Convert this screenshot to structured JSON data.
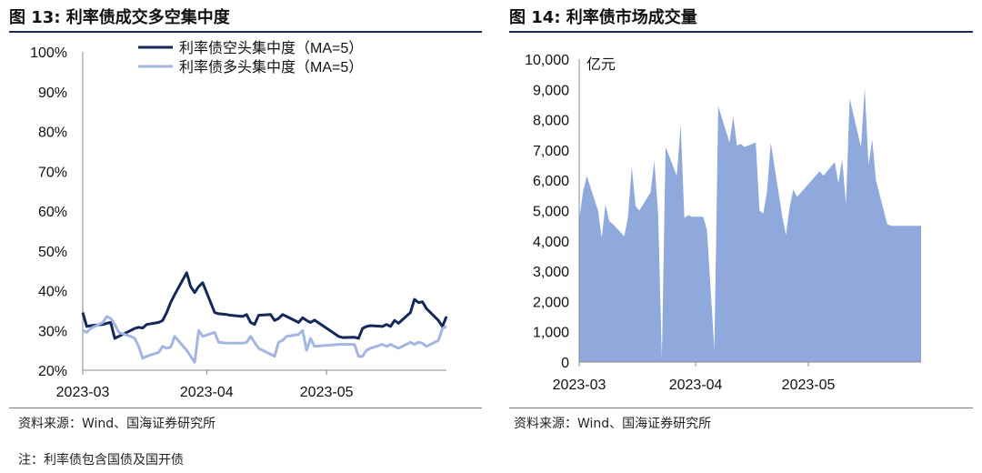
{
  "left_panel": {
    "header": "图 13: 利率债成交多空集中度",
    "source": "资料来源：Wind、国海证券研究所"
  },
  "right_panel": {
    "header": "图 14: 利率债市场成交量",
    "source": "资料来源：Wind、国海证券研究所"
  },
  "note": "注：利率债包含国债及国开债",
  "colors": {
    "short_series": "#14285a",
    "long_series": "#a3b6e2",
    "volume_fill": "#8fa9dc",
    "header_rule": "#1b2d4f"
  },
  "chart_data": [
    {
      "type": "line",
      "title": "",
      "x_ticks": [
        "2023-03",
        "2023-04",
        "2023-05"
      ],
      "y_ticks": [
        "20%",
        "30%",
        "40%",
        "50%",
        "60%",
        "70%",
        "80%",
        "90%",
        "100%"
      ],
      "ylim": [
        20,
        100
      ],
      "legend_position": "top",
      "x": [
        "2023-03-01",
        "2023-03-02",
        "2023-03-03",
        "2023-03-06",
        "2023-03-07",
        "2023-03-08",
        "2023-03-09",
        "2023-03-10",
        "2023-03-13",
        "2023-03-14",
        "2023-03-15",
        "2023-03-16",
        "2023-03-17",
        "2023-03-20",
        "2023-03-21",
        "2023-03-22",
        "2023-03-23",
        "2023-03-24",
        "2023-03-27",
        "2023-03-28",
        "2023-03-29",
        "2023-03-30",
        "2023-03-31",
        "2023-04-03",
        "2023-04-04",
        "2023-04-06",
        "2023-04-07",
        "2023-04-10",
        "2023-04-11",
        "2023-04-12",
        "2023-04-13",
        "2023-04-14",
        "2023-04-17",
        "2023-04-18",
        "2023-04-19",
        "2023-04-20",
        "2023-04-21",
        "2023-04-24",
        "2023-04-25",
        "2023-04-26",
        "2023-04-27",
        "2023-04-28",
        "2023-05-04",
        "2023-05-05",
        "2023-05-08",
        "2023-05-09",
        "2023-05-10",
        "2023-05-11",
        "2023-05-12",
        "2023-05-15",
        "2023-05-16",
        "2023-05-17",
        "2023-05-18",
        "2023-05-19",
        "2023-05-22",
        "2023-05-23",
        "2023-05-24",
        "2023-05-25",
        "2023-05-26",
        "2023-05-29",
        "2023-05-30",
        "2023-05-31"
      ],
      "series": [
        {
          "name": "利率债空头集中度（MA=5）",
          "values": [
            34.5,
            31.0,
            31.2,
            31.5,
            31.8,
            32.0,
            28.0,
            28.5,
            30.0,
            30.5,
            30.8,
            30.6,
            31.5,
            32.0,
            32.5,
            34.5,
            37.0,
            39.0,
            44.5,
            41.0,
            39.5,
            41.0,
            42.0,
            34.5,
            34.2,
            34.0,
            33.8,
            33.5,
            34.0,
            32.0,
            31.5,
            33.8,
            34.0,
            32.5,
            33.0,
            34.0,
            33.5,
            32.0,
            33.2,
            32.5,
            32.0,
            32.6,
            28.5,
            28.2,
            28.3,
            28.0,
            30.5,
            31.0,
            31.2,
            31.0,
            31.5,
            31.0,
            32.5,
            31.8,
            34.5,
            37.8,
            37.0,
            37.2,
            35.5,
            32.5,
            31.0,
            33.5
          ]
        },
        {
          "name": "利率债多头集中度（MA=5）",
          "values": [
            30.0,
            29.5,
            30.5,
            32.0,
            33.5,
            33.0,
            31.5,
            29.5,
            28.5,
            28.0,
            26.0,
            23.0,
            23.5,
            24.5,
            26.0,
            25.5,
            25.8,
            28.5,
            25.0,
            23.5,
            22.0,
            30.0,
            28.5,
            29.5,
            27.0,
            26.8,
            26.8,
            26.8,
            27.0,
            28.5,
            27.0,
            25.5,
            24.0,
            23.5,
            27.0,
            27.5,
            28.5,
            29.0,
            30.0,
            25.0,
            28.0,
            26.0,
            26.5,
            26.5,
            26.5,
            23.5,
            23.5,
            25.0,
            25.5,
            26.5,
            26.0,
            26.5,
            26.0,
            25.5,
            27.0,
            26.5,
            27.0,
            26.8,
            26.0,
            27.5,
            30.5,
            31.0
          ]
        }
      ]
    },
    {
      "type": "area",
      "title": "",
      "ylabel": "亿元",
      "x_ticks": [
        "2023-03",
        "2023-04",
        "2023-05"
      ],
      "y_ticks": [
        "0",
        "1,000",
        "2,000",
        "3,000",
        "4,000",
        "5,000",
        "6,000",
        "7,000",
        "8,000",
        "9,000",
        "10,000"
      ],
      "ylim": [
        0,
        10000
      ],
      "x": [
        "2023-03-01",
        "2023-03-02",
        "2023-03-03",
        "2023-03-06",
        "2023-03-07",
        "2023-03-08",
        "2023-03-09",
        "2023-03-10",
        "2023-03-13",
        "2023-03-14",
        "2023-03-15",
        "2023-03-16",
        "2023-03-17",
        "2023-03-20",
        "2023-03-21",
        "2023-03-22",
        "2023-03-23",
        "2023-03-24",
        "2023-03-27",
        "2023-03-28",
        "2023-03-29",
        "2023-03-30",
        "2023-03-31",
        "2023-04-03",
        "2023-04-04",
        "2023-04-06",
        "2023-04-07",
        "2023-04-10",
        "2023-04-11",
        "2023-04-12",
        "2023-04-13",
        "2023-04-14",
        "2023-04-17",
        "2023-04-18",
        "2023-04-19",
        "2023-04-20",
        "2023-04-21",
        "2023-04-24",
        "2023-04-25",
        "2023-04-26",
        "2023-04-27",
        "2023-04-28",
        "2023-05-04",
        "2023-05-05",
        "2023-05-08",
        "2023-05-09",
        "2023-05-10",
        "2023-05-11",
        "2023-05-12",
        "2023-05-15",
        "2023-05-16",
        "2023-05-17",
        "2023-05-18",
        "2023-05-19",
        "2023-05-22",
        "2023-05-23",
        "2023-05-24",
        "2023-05-25",
        "2023-05-26",
        "2023-05-29",
        "2023-05-30",
        "2023-05-31"
      ],
      "series": [
        {
          "name": "",
          "values": [
            4700,
            5600,
            6150,
            5000,
            4100,
            5200,
            4650,
            4550,
            4150,
            4800,
            6450,
            5150,
            5000,
            5600,
            6650,
            4900,
            100,
            7100,
            6150,
            7850,
            4750,
            4850,
            4800,
            4800,
            4350,
            400,
            8450,
            7250,
            8100,
            7150,
            7200,
            7100,
            7250,
            5000,
            4900,
            5650,
            7250,
            4850,
            4200,
            5100,
            5700,
            5450,
            6300,
            6150,
            6600,
            5900,
            6700,
            5200,
            8700,
            7100,
            9050,
            6500,
            7350,
            6000,
            4550,
            4500,
            4500,
            4500,
            4500,
            4500,
            4500,
            4500
          ]
        }
      ]
    }
  ]
}
